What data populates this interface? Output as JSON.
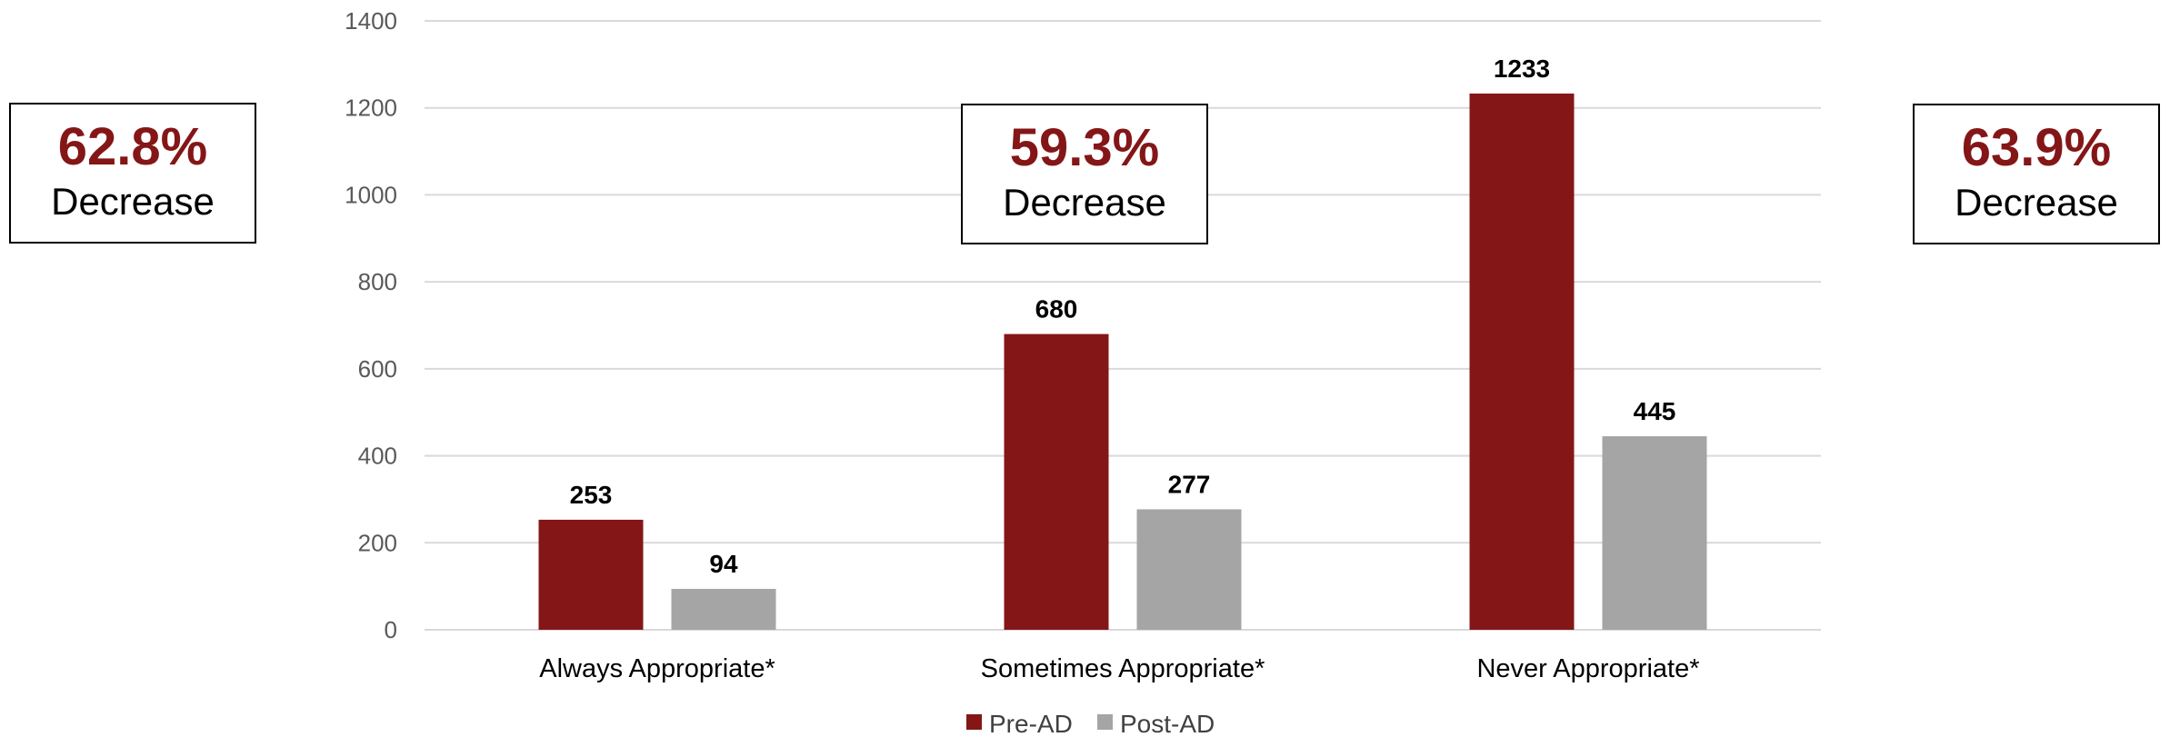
{
  "chart_data": {
    "type": "bar",
    "categories": [
      "Always Appropriate*",
      "Sometimes Appropriate*",
      "Never Appropriate*"
    ],
    "series": [
      {
        "name": "Pre-AD",
        "values": [
          253,
          680,
          1233
        ],
        "color": "#841617"
      },
      {
        "name": "Post-AD",
        "values": [
          94,
          277,
          445
        ],
        "color": "#A5A5A5"
      }
    ],
    "ylim": [
      0,
      1400
    ],
    "yticks": [
      0,
      200,
      400,
      600,
      800,
      1000,
      1200,
      1400
    ],
    "grid": true,
    "legend": "bottom-center",
    "annotations": [
      {
        "percent": "62.8%",
        "text": "Decrease"
      },
      {
        "percent": "59.3%",
        "text": "Decrease"
      },
      {
        "percent": "63.9%",
        "text": "Decrease"
      }
    ]
  }
}
